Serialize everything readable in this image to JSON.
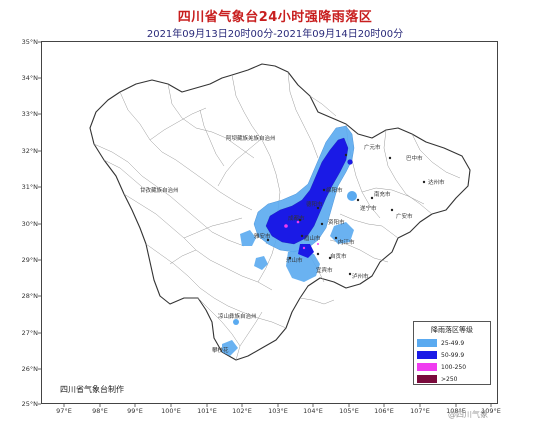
{
  "header": {
    "title": "四川省气象台24小时强降雨落区",
    "subtitle": "2021年09月13日20时00分-2021年09月14日20时00分"
  },
  "axes": {
    "latitudes": [
      "35°N",
      "34°N",
      "33°N",
      "32°N",
      "31°N",
      "30°N",
      "29°N",
      "28°N",
      "27°N",
      "26°N",
      "25°N"
    ],
    "longitudes": [
      "97°E",
      "98°E",
      "99°E",
      "100°E",
      "101°E",
      "102°E",
      "103°E",
      "104°E",
      "105°E",
      "106°E",
      "107°E",
      "108°E",
      "109°E"
    ]
  },
  "places": {
    "aba": "阿坝藏族羌族自治州",
    "ganzi": "甘孜藏族自治州",
    "liangshan": "凉山彝族自治州",
    "guangyuan": "广元市",
    "bazhong": "巴中市",
    "dazhou": "达州市",
    "mianyang": "绵阳市",
    "deyang": "德阳市",
    "suining": "遂宁市",
    "nanchong": "南充市",
    "guangan": "广安市",
    "chengdu": "成都市",
    "ziyang": "资阳市",
    "neijiang": "内江市",
    "meishan": "眉山市",
    "yaan": "雅安市",
    "leshan": "乐山市",
    "zigong": "自贡市",
    "yibin": "宜宾市",
    "luzhou": "泸州市",
    "panzhihua": "攀枝花"
  },
  "legend": {
    "title": "降雨落区等级",
    "items": [
      {
        "label": "25-49.9",
        "color": "#5aaaf0"
      },
      {
        "label": "50-99.9",
        "color": "#1a1ae6"
      },
      {
        "label": "100-250",
        "color": "#f03cf0"
      },
      {
        "label": ">250",
        "color": "#7a0a3c"
      }
    ]
  },
  "credit": "四川省气象台制作",
  "watermark": "@四川气象"
}
